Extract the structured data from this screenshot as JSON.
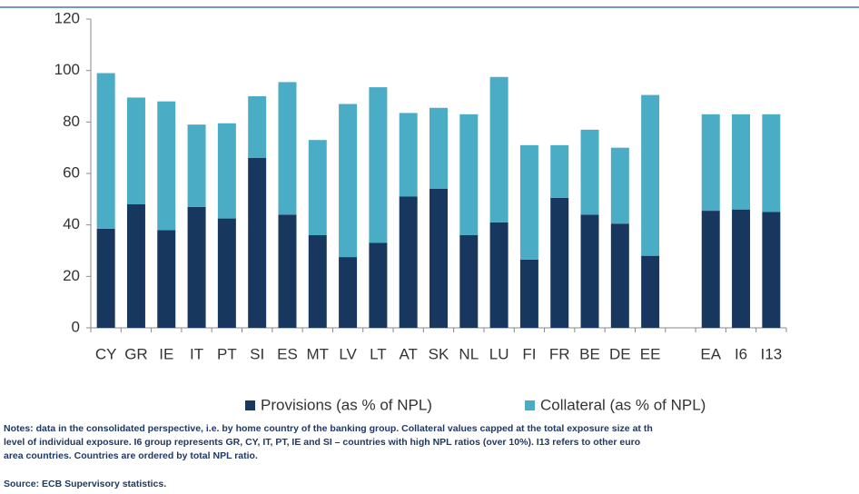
{
  "chart_data": {
    "type": "stacked_bar",
    "categories": [
      "CY",
      "GR",
      "IE",
      "IT",
      "PT",
      "SI",
      "ES",
      "MT",
      "LV",
      "LT",
      "AT",
      "SK",
      "NL",
      "LU",
      "FI",
      "FR",
      "BE",
      "DE",
      "EE",
      null,
      "EA",
      "I6",
      "I13"
    ],
    "series": [
      {
        "name": "Provisions (as % of NPL)",
        "color": "#17375e",
        "values": [
          38.5,
          48,
          38,
          47,
          42.5,
          66,
          44,
          36,
          27.5,
          33,
          51,
          54,
          36,
          41,
          26.5,
          50.5,
          44,
          40.5,
          28,
          null,
          45.5,
          46,
          45
        ]
      },
      {
        "name": "Collateral (as % of NPL)",
        "color": "#4bacc6",
        "values": [
          60.5,
          41.5,
          50,
          32,
          37,
          24,
          51.5,
          37,
          59.5,
          60.5,
          32.5,
          31.5,
          47,
          56.5,
          44.5,
          20.5,
          33,
          29.5,
          62.5,
          null,
          37.5,
          37,
          38
        ]
      }
    ],
    "ylim": [
      0,
      120
    ],
    "yticks": [
      0,
      20,
      40,
      60,
      80,
      100,
      120
    ],
    "grid": false,
    "legend": "bottom"
  },
  "notes": [
    "Notes: data in the consolidated perspective, i.e. by home country of the banking group. Collateral values capped at the total exposure size at th",
    "level of individual exposure. I6 group represents GR, CY, IT, PT, IE and SI – countries with high NPL ratios (over 10%). I13 refers to other euro",
    "area countries. Countries are ordered by total NPL ratio."
  ],
  "source": "Source: ECB Supervisory statistics."
}
